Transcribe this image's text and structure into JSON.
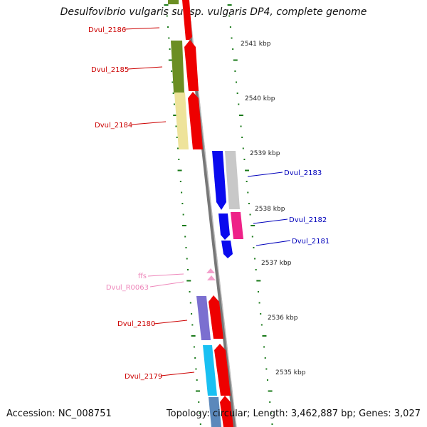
{
  "title": "Desulfovibrio vulgaris subsp. vulgaris DP4, complete genome",
  "footer": {
    "accession": "Accession: NC_008751",
    "summary": "Topology: circular; Length: 3,462,887 bp; Genes: 3,027"
  },
  "colors": {
    "forward_label": "#cc0000",
    "reverse_label": "#0000bb",
    "rna_label": "#ee88bb",
    "tick": "#1a7a1a",
    "backbone": "#888888"
  },
  "scale_labels": [
    "2541 kbp",
    "2540 kbp",
    "2539 kbp",
    "2538 kbp",
    "2537 kbp",
    "2536 kbp",
    "2535 kbp"
  ],
  "gene_labels": [
    {
      "text": "Dvul_2186",
      "strand": "forward"
    },
    {
      "text": "Dvul_2185",
      "strand": "forward"
    },
    {
      "text": "Dvul_2184",
      "strand": "forward"
    },
    {
      "text": "Dvul_2183",
      "strand": "reverse"
    },
    {
      "text": "Dvul_2182",
      "strand": "reverse"
    },
    {
      "text": "Dvul_2181",
      "strand": "reverse"
    },
    {
      "text": "ffs",
      "strand": "rna"
    },
    {
      "text": "Dvul_R0063",
      "strand": "rna"
    },
    {
      "text": "Dvul_2180",
      "strand": "forward"
    },
    {
      "text": "Dvul_2179",
      "strand": "forward"
    }
  ]
}
